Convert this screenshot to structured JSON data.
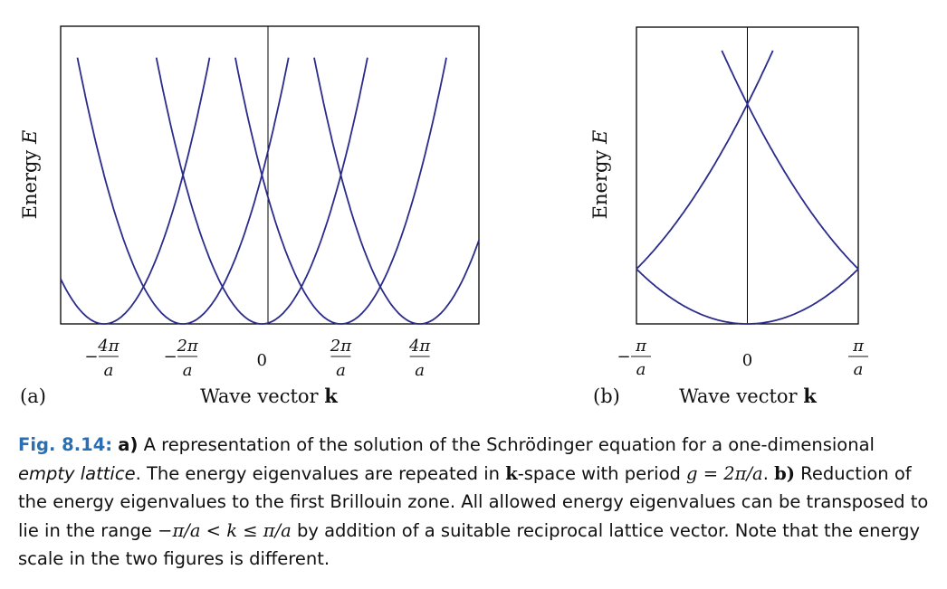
{
  "chart_data": [
    {
      "type": "line",
      "panel_label": "(a)",
      "xlabel": "Wave vector",
      "xlabel_symbol": "k",
      "ylabel": "Energy",
      "ylabel_symbol": "E",
      "x_unit": "π/a",
      "xlim": [
        -5.1,
        5.5
      ],
      "ylim": [
        0,
        8.0
      ],
      "curve": "E = (k - n·2π/a)²",
      "parabola_centers": [
        -4,
        -2,
        0,
        2,
        4
      ],
      "ticks": [
        {
          "value": -4,
          "sign": "−",
          "num": "4π",
          "den": "a"
        },
        {
          "value": -2,
          "sign": "−",
          "num": "2π",
          "den": "a"
        },
        {
          "value": 0,
          "sign": "",
          "num": "0",
          "den": ""
        },
        {
          "value": 2,
          "sign": "",
          "num": "2π",
          "den": "a"
        },
        {
          "value": 4,
          "sign": "",
          "num": "4π",
          "den": "a"
        }
      ]
    },
    {
      "type": "line",
      "panel_label": "(b)",
      "xlabel": "Wave vector",
      "xlabel_symbol": "k",
      "ylabel": "Energy",
      "ylabel_symbol": "E",
      "x_unit": "π/a",
      "xlim": [
        -1,
        1
      ],
      "ylim": [
        0,
        5.4
      ],
      "curve": "E = (k - n·2π/a)² reduced to first Brillouin zone",
      "bands": [
        0,
        1,
        -1,
        2,
        -2
      ],
      "ticks": [
        {
          "value": -1,
          "sign": "−",
          "num": "π",
          "den": "a"
        },
        {
          "value": 0,
          "sign": "",
          "num": "0",
          "den": ""
        },
        {
          "value": 1,
          "sign": "",
          "num": "π",
          "den": "a"
        }
      ]
    }
  ],
  "caption": {
    "fig_label": "Fig. 8.14:",
    "part_a": "a)",
    "s1": "A representation of the solution of the Schrödinger equation for a one-dimensional",
    "empty": "empty",
    "lattice": "lattice",
    "s2": ". The energy eigenvalues are repeated in",
    "k1": "k",
    "s3": "-space with period",
    "g_eq": "g = 2π/a",
    "s4": ".",
    "part_b": "b)",
    "s5": "Reduction of the energy eigenvalues to the first Brillouin zone. All allowed energy eigenvalues can be transposed to lie in the range",
    "range": "−π/a < k ≤ π/a",
    "s6": "by addition of a suitable reciprocal lattice vector. Note that the energy scale in the two figures is different."
  },
  "colors": {
    "curve": "#2b2b8c",
    "frame": "#000000",
    "caption_label": "#2a6fb3"
  }
}
